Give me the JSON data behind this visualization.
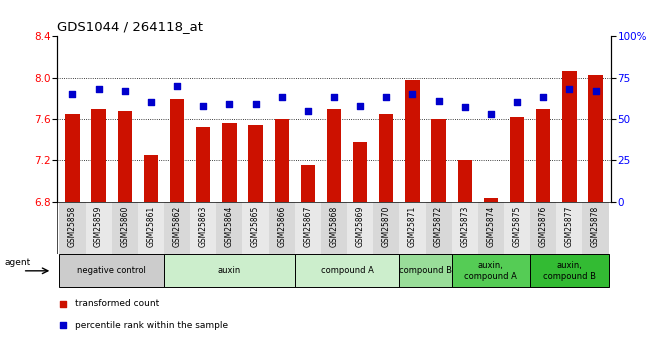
{
  "title": "GDS1044 / 264118_at",
  "samples": [
    "GSM25858",
    "GSM25859",
    "GSM25860",
    "GSM25861",
    "GSM25862",
    "GSM25863",
    "GSM25864",
    "GSM25865",
    "GSM25866",
    "GSM25867",
    "GSM25868",
    "GSM25869",
    "GSM25870",
    "GSM25871",
    "GSM25872",
    "GSM25873",
    "GSM25874",
    "GSM25875",
    "GSM25876",
    "GSM25877",
    "GSM25878"
  ],
  "bar_values": [
    7.65,
    7.7,
    7.68,
    7.25,
    7.79,
    7.52,
    7.56,
    7.54,
    7.6,
    7.16,
    7.7,
    7.38,
    7.65,
    7.98,
    7.6,
    7.2,
    6.84,
    7.62,
    7.7,
    8.06,
    8.03
  ],
  "percentile_values": [
    65,
    68,
    67,
    60,
    70,
    58,
    59,
    59,
    63,
    55,
    63,
    58,
    63,
    65,
    61,
    57,
    53,
    60,
    63,
    68,
    67
  ],
  "ylim_left": [
    6.8,
    8.4
  ],
  "ylim_right": [
    0,
    100
  ],
  "yticks_left": [
    6.8,
    7.2,
    7.6,
    8.0,
    8.4
  ],
  "yticks_right": [
    0,
    25,
    50,
    75,
    100
  ],
  "ytick_labels_right": [
    "0",
    "25",
    "50",
    "75",
    "100%"
  ],
  "bar_color": "#cc1100",
  "dot_color": "#0000cc",
  "agent_groups": [
    {
      "label": "negative control",
      "start": 0,
      "end": 3,
      "color": "#cccccc"
    },
    {
      "label": "auxin",
      "start": 4,
      "end": 8,
      "color": "#cceecc"
    },
    {
      "label": "compound A",
      "start": 9,
      "end": 12,
      "color": "#cceecc"
    },
    {
      "label": "compound B",
      "start": 13,
      "end": 14,
      "color": "#99dd99"
    },
    {
      "label": "auxin,\ncompound A",
      "start": 15,
      "end": 17,
      "color": "#55cc55"
    },
    {
      "label": "auxin,\ncompound B",
      "start": 18,
      "end": 20,
      "color": "#33bb33"
    }
  ],
  "legend_bar_label": "transformed count",
  "legend_dot_label": "percentile rank within the sample",
  "bar_width": 0.55
}
